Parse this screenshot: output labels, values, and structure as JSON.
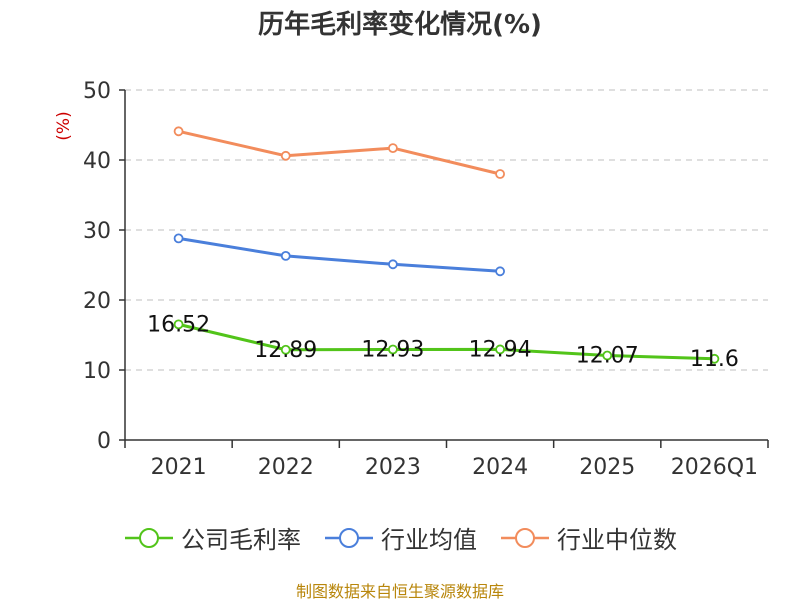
{
  "chart_data": {
    "type": "line",
    "title": "历年毛利率变化情况(%)",
    "ylabel": "(%)",
    "xlabel": "",
    "ylim": [
      0,
      50
    ],
    "yticks": [
      0,
      10,
      20,
      30,
      40,
      50
    ],
    "categories": [
      "2021",
      "2022",
      "2023",
      "2024",
      "2025",
      "2026Q1"
    ],
    "grid": true,
    "legend_position": "bottom",
    "series": [
      {
        "name": "公司毛利率",
        "color": "#52c41a",
        "show_labels": true,
        "labels": [
          "16.52",
          "12.89",
          "12.93",
          "12.94",
          "12.07",
          "11.6"
        ],
        "values": [
          16.52,
          12.89,
          12.93,
          12.94,
          12.07,
          11.6
        ]
      },
      {
        "name": "行业均值",
        "color": "#4a7fdb",
        "show_labels": false,
        "values": [
          28.8,
          26.3,
          25.1,
          24.1,
          null,
          null
        ]
      },
      {
        "name": "行业中位数",
        "color": "#f28c5c",
        "show_labels": false,
        "values": [
          44.1,
          40.6,
          41.7,
          38.0,
          null,
          null
        ]
      }
    ]
  },
  "source_note": "制图数据来自恒生聚源数据库",
  "colors": {
    "axis": "#333333",
    "grid": "#cccccc",
    "ylabel": "#cc0000",
    "source": "#b8860b"
  }
}
